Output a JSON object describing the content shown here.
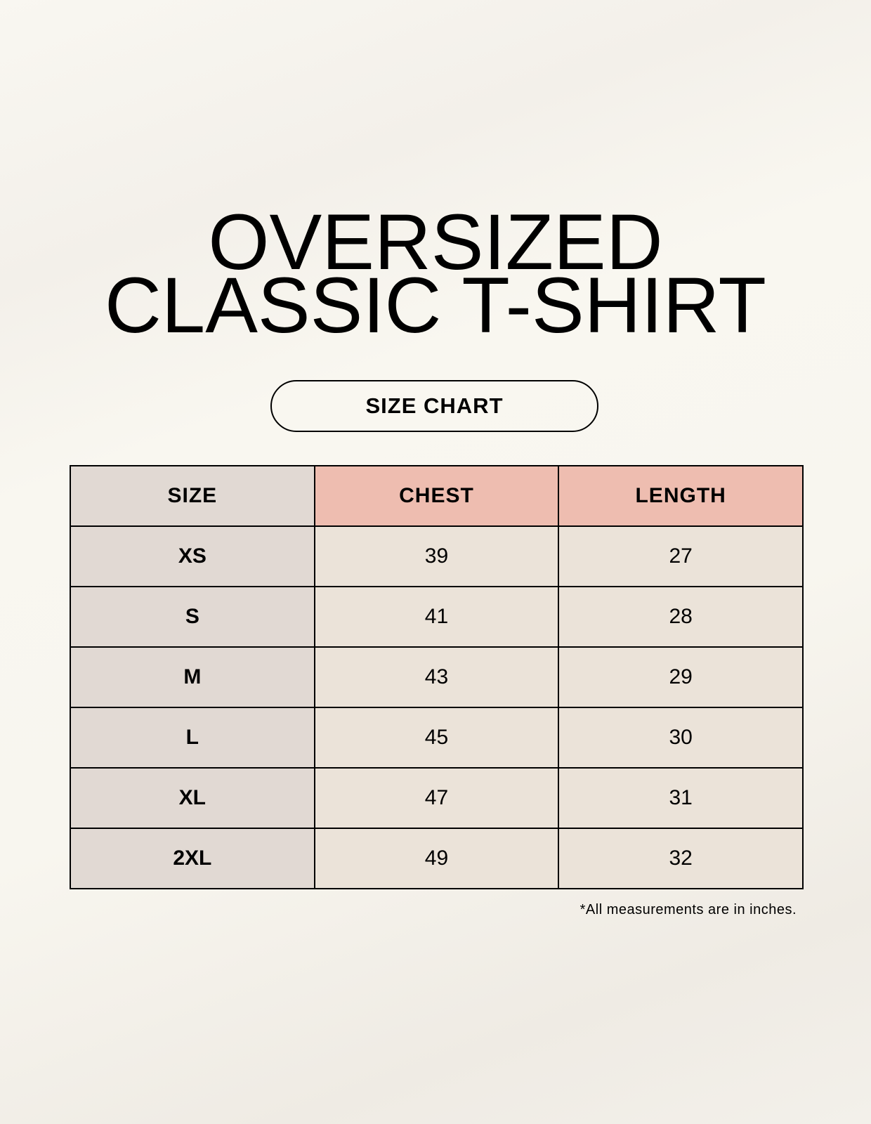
{
  "title": {
    "line1": "OVERSIZED",
    "line2": "CLASSIC T-SHIRT"
  },
  "badge": "SIZE CHART",
  "table": {
    "headers": [
      "SIZE",
      "CHEST",
      "LENGTH"
    ],
    "rows": [
      [
        "XS",
        "39",
        "27"
      ],
      [
        "S",
        "41",
        "28"
      ],
      [
        "M",
        "43",
        "29"
      ],
      [
        "L",
        "45",
        "30"
      ],
      [
        "XL",
        "47",
        "31"
      ],
      [
        "2XL",
        "49",
        "32"
      ]
    ]
  },
  "footnote": "*All measurements are in inches.",
  "colors": {
    "header_accent": "#eebdb0",
    "size_column": "#e1d9d3",
    "cell": "#ebe3d9",
    "background": "#f8f6ef"
  }
}
